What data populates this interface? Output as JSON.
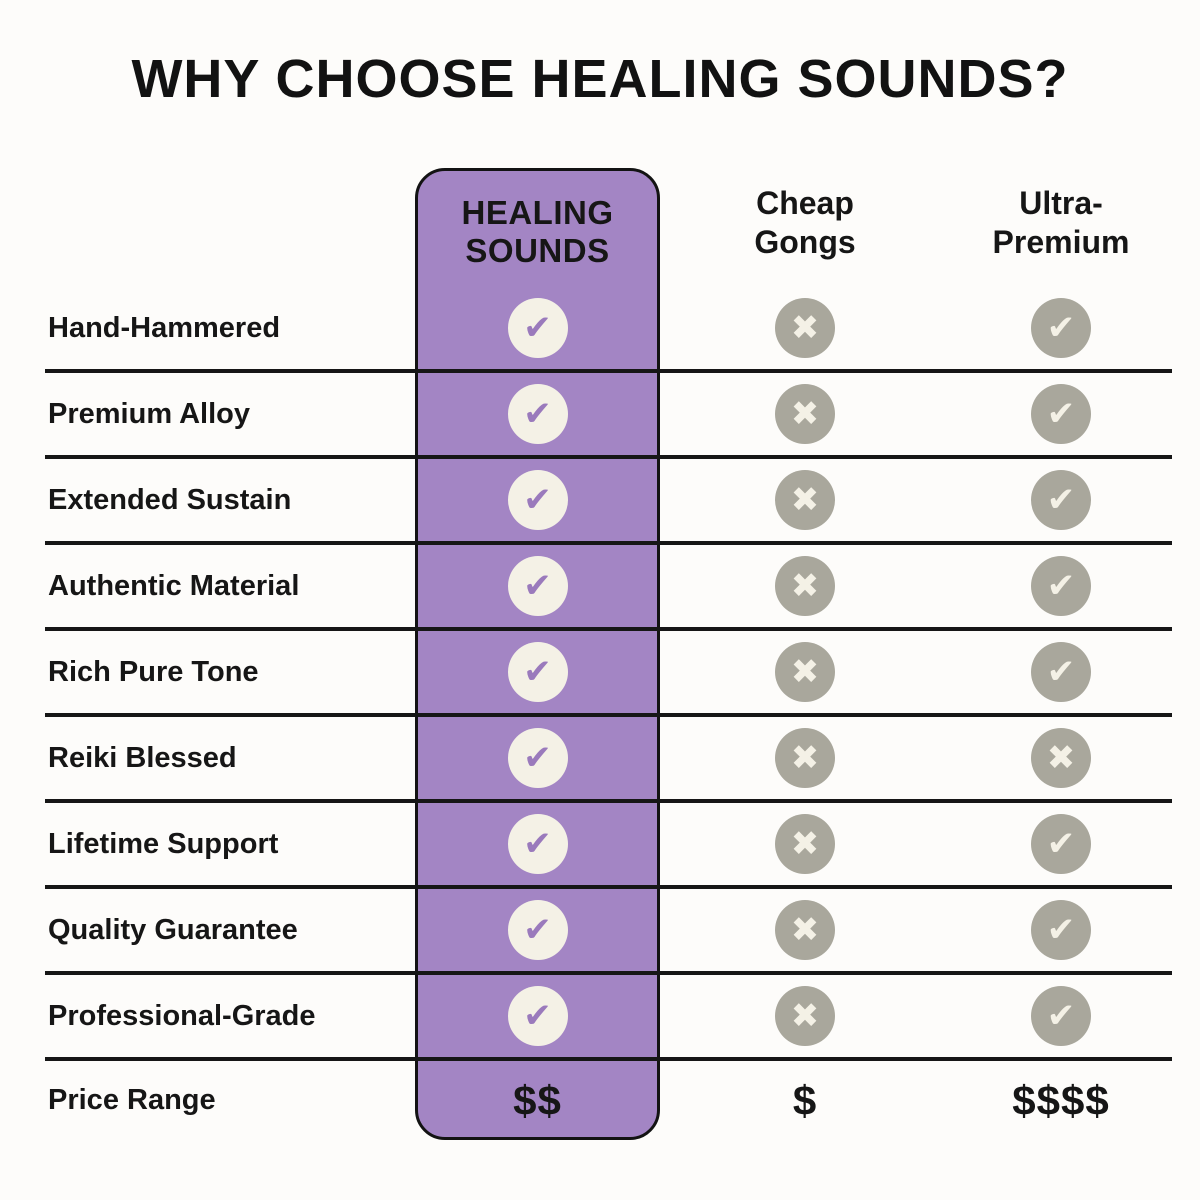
{
  "title": "WHY CHOOSE HEALING SOUNDS?",
  "columns": {
    "brand": "HEALING\nSOUNDS",
    "competitor1": "Cheap\nGongs",
    "competitor2": "Ultra-\nPremium"
  },
  "rows": [
    {
      "label": "Hand-Hammered",
      "healing_sounds": "check",
      "cheap_gongs": "cross",
      "ultra_premium": "check"
    },
    {
      "label": "Premium Alloy",
      "healing_sounds": "check",
      "cheap_gongs": "cross",
      "ultra_premium": "check"
    },
    {
      "label": "Extended Sustain",
      "healing_sounds": "check",
      "cheap_gongs": "cross",
      "ultra_premium": "check"
    },
    {
      "label": "Authentic Material",
      "healing_sounds": "check",
      "cheap_gongs": "cross",
      "ultra_premium": "check"
    },
    {
      "label": "Rich Pure Tone",
      "healing_sounds": "check",
      "cheap_gongs": "cross",
      "ultra_premium": "check"
    },
    {
      "label": "Reiki Blessed",
      "healing_sounds": "check",
      "cheap_gongs": "cross",
      "ultra_premium": "cross"
    },
    {
      "label": "Lifetime Support",
      "healing_sounds": "check",
      "cheap_gongs": "cross",
      "ultra_premium": "check"
    },
    {
      "label": "Quality Guarantee",
      "healing_sounds": "check",
      "cheap_gongs": "cross",
      "ultra_premium": "check"
    },
    {
      "label": "Professional-Grade",
      "healing_sounds": "check",
      "cheap_gongs": "cross",
      "ultra_premium": "check"
    }
  ],
  "price_row": {
    "label": "Price Range",
    "healing_sounds": "$$",
    "cheap_gongs": "$",
    "ultra_premium": "$$$$"
  },
  "colors": {
    "highlight_purple": "#a385c4",
    "icon_cream": "#f4f1e6",
    "icon_gray": "#a9a79c",
    "line_black": "#161616",
    "background": "#fdfcfa"
  }
}
